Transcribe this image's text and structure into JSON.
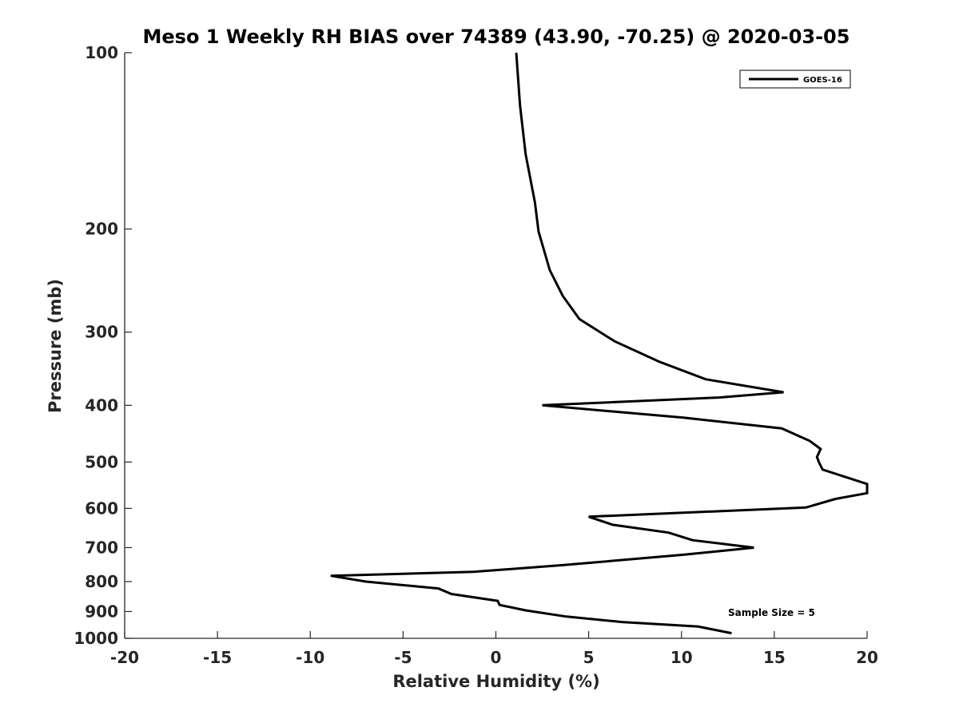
{
  "chart_data": {
    "type": "line",
    "title": "Meso 1 Weekly RH BIAS over 74389 (43.90, -70.25) @ 2020-03-05",
    "xlabel": "Relative Humidity (%)",
    "ylabel": "Pressure (mb)",
    "xlim": [
      -20,
      20
    ],
    "ylim": [
      100,
      1000
    ],
    "yscale": "log",
    "yreversed": true,
    "xticks": [
      -20,
      -15,
      -10,
      -5,
      0,
      5,
      10,
      15,
      20
    ],
    "yticks": [
      100,
      200,
      300,
      400,
      500,
      600,
      700,
      800,
      900,
      1000
    ],
    "grid": false,
    "legend_position": "top-right",
    "annotation": "Sample Size = 5",
    "series": [
      {
        "name": "GOES-16",
        "color": "#000000",
        "x": [
          1.1,
          1.3,
          1.6,
          2.1,
          2.3,
          2.9,
          3.6,
          4.5,
          6.4,
          8.8,
          11.3,
          15.5,
          12.0,
          2.5,
          10.1,
          15.4,
          16.9,
          17.5,
          17.3,
          17.4,
          17.6,
          20.0,
          20.0,
          18.3,
          16.7,
          5.0,
          6.3,
          9.3,
          10.6,
          13.9,
          10.1,
          3.6,
          -1.2,
          -8.9,
          -7.0,
          -3.1,
          -2.4,
          0.1,
          0.2,
          1.6,
          3.8,
          6.8,
          10.9,
          12.7
        ],
        "y": [
          100,
          123,
          149,
          180,
          202,
          235,
          260,
          285,
          311,
          337,
          361,
          380,
          388,
          400,
          420,
          438,
          460,
          475,
          490,
          500,
          515,
          545,
          565,
          578,
          598,
          620,
          640,
          660,
          680,
          700,
          720,
          750,
          770,
          782,
          800,
          822,
          840,
          863,
          877,
          896,
          918,
          938,
          955,
          980
        ]
      }
    ]
  }
}
